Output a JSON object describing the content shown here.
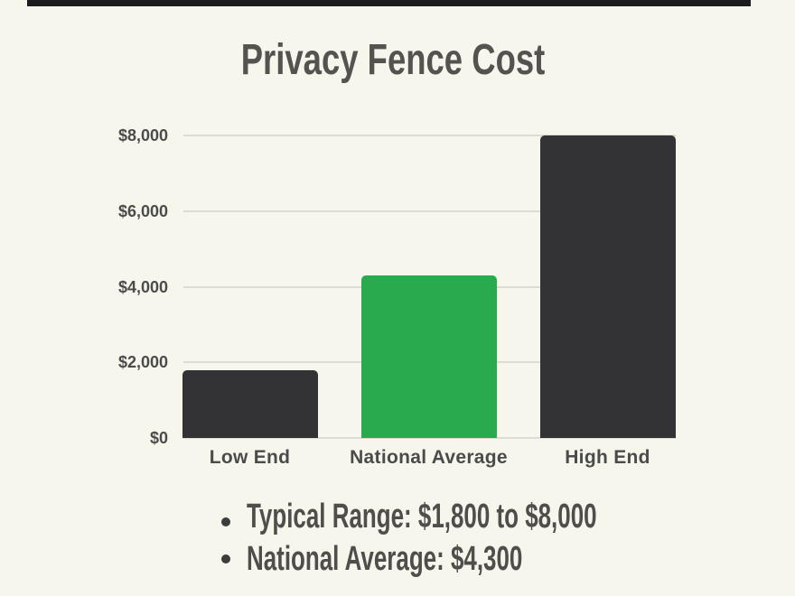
{
  "page": {
    "background_color": "#f6f6ec"
  },
  "top_strip": {
    "color": "#1c1c1e"
  },
  "chart_data": {
    "type": "bar",
    "title": "Privacy Fence Cost",
    "categories": [
      "Low End",
      "National Average",
      "High End"
    ],
    "values": [
      1800,
      4300,
      8000
    ],
    "bar_colors": [
      "#333234",
      "#2aaa4e",
      "#333234"
    ],
    "xlabel": "",
    "ylabel": "",
    "ylim": [
      0,
      8000
    ],
    "y_ticks": [
      {
        "label": "$0",
        "value": 0
      },
      {
        "label": "$2,000",
        "value": 2000
      },
      {
        "label": "$4,000",
        "value": 4000
      },
      {
        "label": "$6,000",
        "value": 6000
      },
      {
        "label": "$8,000",
        "value": 8000
      }
    ],
    "grid": true,
    "legend_position": "none",
    "title_color": "#555350",
    "axis_label_color": "#4b4b4b",
    "gridline_color": "#dcdcd4"
  },
  "notes": {
    "bullet_color": "#3c3c3c",
    "text_color": "#4f4e4b",
    "items": [
      "Typical Range: $1,800 to $8,000",
      "National Average: $4,300"
    ]
  }
}
